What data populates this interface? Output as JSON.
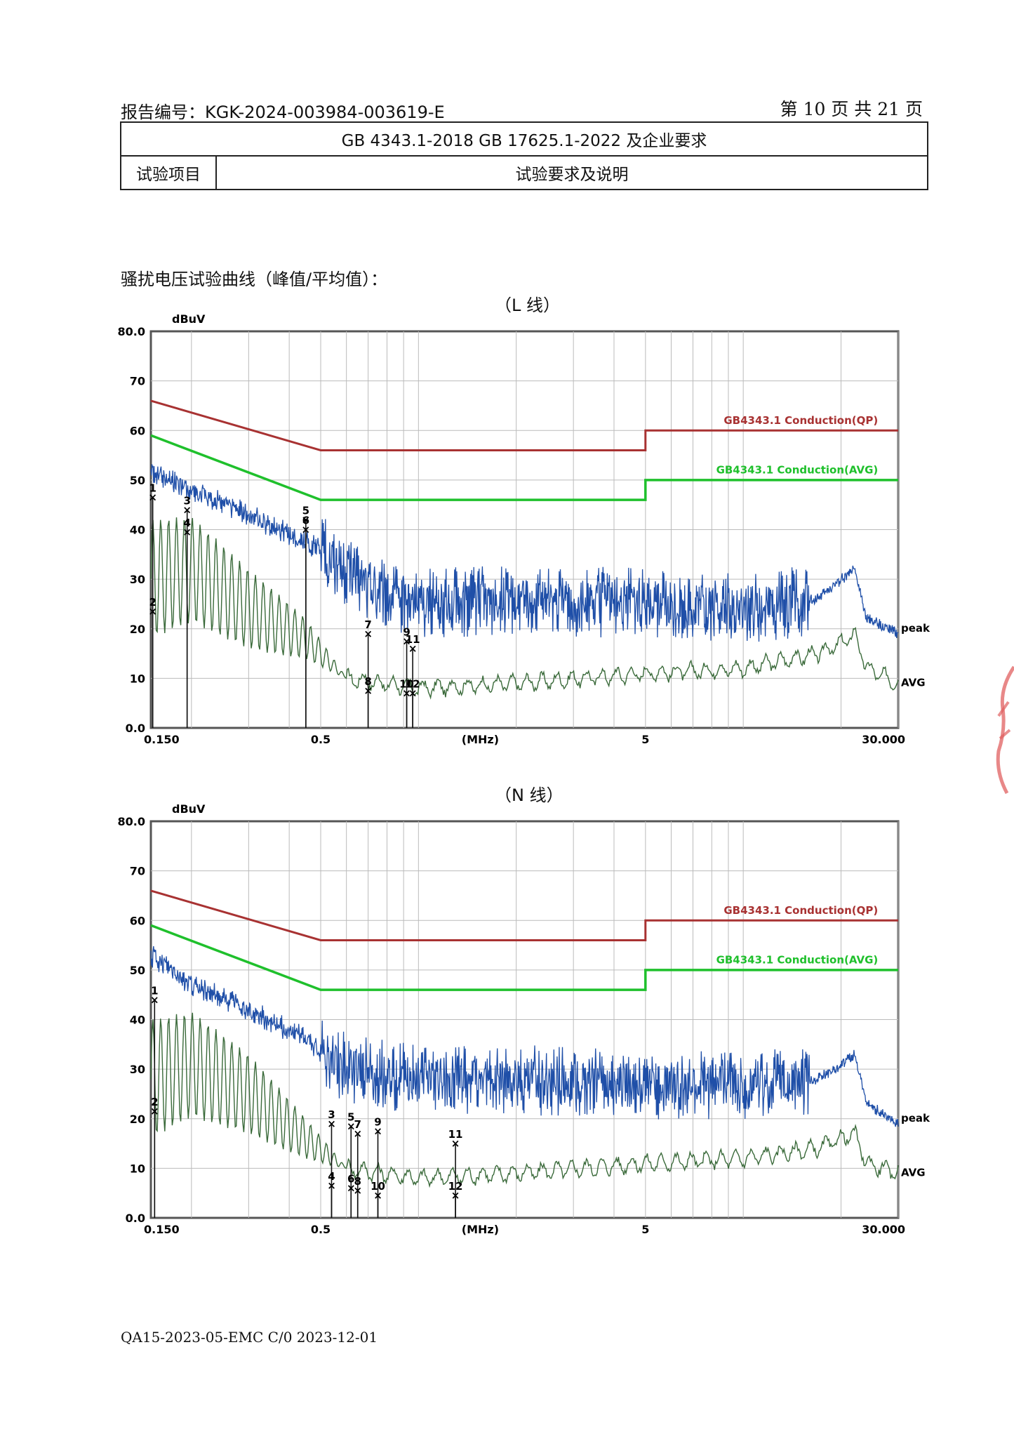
{
  "header": {
    "report_no": "报告编号：KGK-2024-003984-003619-E",
    "page": "第 10 页  共 21 页",
    "standard": "GB 4343.1-2018    GB 17625.1-2022 及企业要求",
    "col1": "试验项目",
    "col2": "试验要求及说明"
  },
  "section_title": "骚扰电压试验曲线（峰值/平均值）：",
  "footer": "QA15-2023-05-EMC    C/0    2023-12-01",
  "colors": {
    "qp_limit": "#a83232",
    "avg_limit": "#1fc02c",
    "peak": "#1f4fa8",
    "avg": "#3a6a3a",
    "grid": "#bbbbbb"
  },
  "chart_data": [
    {
      "type": "line",
      "caption": "（L 线）",
      "ylabel": "dBuV",
      "ylim": [
        0,
        80
      ],
      "y_ticks": [
        "80.0",
        "70",
        "60",
        "50",
        "40",
        "30",
        "20",
        "10",
        "0.0"
      ],
      "x_scale": "log",
      "xlim": [
        0.15,
        30
      ],
      "x_ticks": [
        "0.150",
        "0.5",
        "(MHz)",
        "5",
        "30.000"
      ],
      "series": [
        {
          "name": "GB4343.1 Conduction(QP)",
          "points": [
            [
              0.15,
              66
            ],
            [
              0.5,
              56
            ],
            [
              5,
              56
            ],
            [
              5,
              60
            ],
            [
              30,
              60
            ]
          ]
        },
        {
          "name": "GB4343.1 Conduction(AVG)",
          "points": [
            [
              0.15,
              59
            ],
            [
              0.5,
              46
            ],
            [
              5,
              46
            ],
            [
              5,
              50
            ],
            [
              30,
              50
            ]
          ]
        },
        {
          "name": "peak",
          "trend": [
            [
              0.15,
              52
            ],
            [
              0.2,
              48
            ],
            [
              0.3,
              43
            ],
            [
              0.5,
              36
            ],
            [
              0.7,
              28
            ],
            [
              1,
              25
            ],
            [
              2,
              26
            ],
            [
              5,
              25
            ],
            [
              10,
              24
            ],
            [
              17,
              26
            ],
            [
              20,
              30
            ],
            [
              22,
              32
            ],
            [
              24,
              22
            ],
            [
              30,
              19
            ]
          ]
        },
        {
          "name": "AVG",
          "trend": [
            [
              0.15,
              30
            ],
            [
              0.2,
              32
            ],
            [
              0.3,
              24
            ],
            [
              0.45,
              18
            ],
            [
              0.6,
              10
            ],
            [
              1,
              8
            ],
            [
              2,
              9
            ],
            [
              5,
              11
            ],
            [
              10,
              12
            ],
            [
              17,
              15
            ],
            [
              20,
              17
            ],
            [
              22,
              19
            ],
            [
              24,
              12
            ],
            [
              30,
              9
            ]
          ]
        }
      ],
      "markers": [
        {
          "label": "1",
          "x": 0.152,
          "y": 46.5
        },
        {
          "label": "2",
          "x": 0.152,
          "y": 23.5
        },
        {
          "label": "3",
          "x": 0.194,
          "y": 44
        },
        {
          "label": "4",
          "x": 0.194,
          "y": 39.5
        },
        {
          "label": "5",
          "x": 0.45,
          "y": 42
        },
        {
          "label": "6",
          "x": 0.45,
          "y": 40
        },
        {
          "label": "7",
          "x": 0.7,
          "y": 19
        },
        {
          "label": "8",
          "x": 0.7,
          "y": 7.5
        },
        {
          "label": "9",
          "x": 0.92,
          "y": 17.5
        },
        {
          "label": "10",
          "x": 0.92,
          "y": 7
        },
        {
          "label": "11",
          "x": 0.96,
          "y": 16
        },
        {
          "label": "12",
          "x": 0.96,
          "y": 7
        }
      ]
    },
    {
      "type": "line",
      "caption": "（N 线）",
      "ylabel": "dBuV",
      "ylim": [
        0,
        80
      ],
      "y_ticks": [
        "80.0",
        "70",
        "60",
        "50",
        "40",
        "30",
        "20",
        "10",
        "0.0"
      ],
      "x_scale": "log",
      "xlim": [
        0.15,
        30
      ],
      "x_ticks": [
        "0.150",
        "0.5",
        "(MHz)",
        "5",
        "30.000"
      ],
      "series": [
        {
          "name": "GB4343.1 Conduction(QP)",
          "points": [
            [
              0.15,
              66
            ],
            [
              0.5,
              56
            ],
            [
              5,
              56
            ],
            [
              5,
              60
            ],
            [
              30,
              60
            ]
          ]
        },
        {
          "name": "GB4343.1 Conduction(AVG)",
          "points": [
            [
              0.15,
              59
            ],
            [
              0.5,
              46
            ],
            [
              5,
              46
            ],
            [
              5,
              50
            ],
            [
              30,
              50
            ]
          ]
        },
        {
          "name": "peak",
          "trend": [
            [
              0.15,
              53
            ],
            [
              0.2,
              47
            ],
            [
              0.3,
              42
            ],
            [
              0.45,
              36
            ],
            [
              0.6,
              30
            ],
            [
              1,
              28
            ],
            [
              2,
              28
            ],
            [
              5,
              27
            ],
            [
              10,
              27
            ],
            [
              17,
              28
            ],
            [
              20,
              31
            ],
            [
              22,
              33
            ],
            [
              24,
              23
            ],
            [
              30,
              19
            ]
          ]
        },
        {
          "name": "AVG",
          "trend": [
            [
              0.15,
              28
            ],
            [
              0.2,
              31
            ],
            [
              0.3,
              25
            ],
            [
              0.45,
              16
            ],
            [
              0.6,
              10
            ],
            [
              1,
              8
            ],
            [
              2,
              9
            ],
            [
              5,
              11
            ],
            [
              10,
              12
            ],
            [
              17,
              14
            ],
            [
              20,
              16
            ],
            [
              22,
              17
            ],
            [
              24,
              11
            ],
            [
              30,
              9
            ]
          ]
        }
      ],
      "markers": [
        {
          "label": "1",
          "x": 0.154,
          "y": 44
        },
        {
          "label": "2",
          "x": 0.154,
          "y": 21.5
        },
        {
          "label": "3",
          "x": 0.54,
          "y": 19
        },
        {
          "label": "4",
          "x": 0.54,
          "y": 6.5
        },
        {
          "label": "5",
          "x": 0.62,
          "y": 18.5
        },
        {
          "label": "6",
          "x": 0.62,
          "y": 6
        },
        {
          "label": "7",
          "x": 0.65,
          "y": 17
        },
        {
          "label": "8",
          "x": 0.65,
          "y": 5.5
        },
        {
          "label": "9",
          "x": 0.75,
          "y": 17.5
        },
        {
          "label": "10",
          "x": 0.75,
          "y": 4.5
        },
        {
          "label": "11",
          "x": 1.3,
          "y": 15
        },
        {
          "label": "12",
          "x": 1.3,
          "y": 4.5
        }
      ]
    }
  ]
}
